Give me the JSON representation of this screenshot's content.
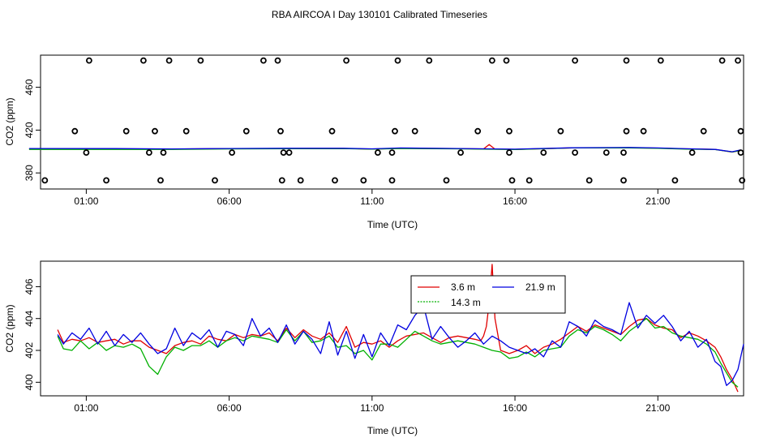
{
  "figure": {
    "title": "RBA AIRCOA I  Day 130101  Calibrated Timeseries"
  },
  "colors": {
    "axis": "#000000",
    "series_3_6m": "#e00000",
    "series_14_3m": "#00b000",
    "series_21_9m": "#0000e0",
    "points": "#000000"
  },
  "chart_data": [
    {
      "type": "line",
      "id": "top",
      "title": "",
      "xlabel": "Time (UTC)",
      "ylabel": "CO2 (ppm)",
      "xlim": [
        -0.6,
        24.0
      ],
      "ylim": [
        365,
        490
      ],
      "xticks": [
        1,
        6,
        11,
        16,
        21
      ],
      "xtick_labels": [
        "01:00",
        "06:00",
        "11:00",
        "16:00",
        "21:00"
      ],
      "yticks": [
        380,
        420,
        460
      ],
      "ytick_labels": [
        "380",
        "420",
        "460"
      ],
      "scatter": {
        "name": "calibration points",
        "x": [
          1.1,
          3.0,
          3.9,
          5.0,
          7.2,
          7.7,
          10.1,
          11.9,
          13.0,
          15.2,
          15.7,
          18.1,
          19.9,
          21.1,
          23.25,
          23.8,
          0.6,
          2.4,
          3.4,
          4.5,
          6.6,
          7.8,
          9.6,
          11.8,
          12.5,
          14.7,
          15.8,
          17.6,
          19.9,
          20.5,
          22.6,
          23.9,
          1.0,
          3.2,
          3.7,
          6.1,
          7.9,
          8.1,
          11.7,
          11.2,
          14.1,
          15.8,
          17.0,
          18.1,
          19.2,
          19.8,
          22.2,
          23.9,
          -0.45,
          1.7,
          3.6,
          5.5,
          7.85,
          8.5,
          9.7,
          10.7,
          11.7,
          13.6,
          15.9,
          16.5,
          18.6,
          19.8,
          21.6,
          23.95
        ],
        "y": [
          485,
          485,
          485,
          485,
          485,
          485,
          485,
          485,
          485,
          485,
          485,
          485,
          485,
          485,
          485,
          485,
          419,
          419,
          419,
          419,
          419,
          419,
          419,
          419,
          419,
          419,
          419,
          419,
          419,
          419,
          419,
          419,
          399,
          399,
          399,
          399,
          399,
          399,
          399,
          399,
          399,
          399,
          399,
          399,
          399,
          399,
          399,
          399,
          373,
          373,
          373,
          373,
          373,
          373,
          373,
          373,
          373,
          373,
          373,
          373,
          373,
          373,
          373,
          373
        ]
      },
      "series": [
        {
          "name": "3.6 m",
          "x": [
            -1,
            2,
            4,
            6,
            8,
            10,
            11,
            12,
            14,
            14.9,
            15.1,
            15.3,
            16,
            18,
            20,
            21,
            22,
            23,
            23.6,
            23.9
          ],
          "values": [
            402.5,
            402.5,
            402.3,
            402.7,
            402.8,
            402.9,
            402.3,
            403.0,
            402.7,
            402.4,
            406.5,
            402.2,
            402.0,
            403.4,
            403.5,
            403.2,
            402.5,
            402.0,
            399.5,
            401.0
          ]
        },
        {
          "name": "14.3 m",
          "x": [
            -1,
            2,
            4,
            6,
            8,
            10,
            11,
            12,
            14,
            16,
            18,
            20,
            21,
            22,
            23,
            23.6,
            23.9
          ],
          "values": [
            402.0,
            402.0,
            402.0,
            402.4,
            402.6,
            402.7,
            402.2,
            402.8,
            402.5,
            401.8,
            403.3,
            403.4,
            403.0,
            402.3,
            401.8,
            399.6,
            401.0
          ]
        },
        {
          "name": "21.9 m",
          "x": [
            -1,
            2,
            4,
            6,
            8,
            10,
            11,
            12,
            14,
            16,
            18,
            20,
            21,
            22,
            23,
            23.6,
            23.9
          ],
          "values": [
            402.8,
            402.7,
            402.4,
            402.8,
            403.0,
            403.0,
            402.5,
            403.3,
            402.8,
            402.2,
            403.5,
            403.8,
            403.3,
            402.6,
            402.0,
            399.8,
            401.5
          ]
        }
      ]
    },
    {
      "type": "line",
      "id": "bottom",
      "title": "",
      "xlabel": "Time (UTC)",
      "ylabel": "CO2 (ppm)",
      "xlim": [
        -0.6,
        24.0
      ],
      "ylim": [
        399.15,
        407.6
      ],
      "xticks": [
        1,
        6,
        11,
        16,
        21
      ],
      "xtick_labels": [
        "01:00",
        "06:00",
        "11:00",
        "16:00",
        "21:00"
      ],
      "yticks": [
        400,
        402,
        404,
        406
      ],
      "ytick_labels": [
        "400",
        "402",
        "404",
        "406"
      ],
      "legend": {
        "placement": "top-center",
        "entries": [
          "3.6 m",
          "14.3 m",
          "21.9 m"
        ]
      },
      "series": [
        {
          "name": "3.6 m",
          "x": [
            0.0,
            0.2,
            0.5,
            0.8,
            1.1,
            1.4,
            1.7,
            2.0,
            2.3,
            2.6,
            2.9,
            3.2,
            3.5,
            3.8,
            4.1,
            4.4,
            4.7,
            5.0,
            5.3,
            5.6,
            5.9,
            6.2,
            6.5,
            6.8,
            7.1,
            7.4,
            7.7,
            8.0,
            8.3,
            8.6,
            8.9,
            9.2,
            9.5,
            9.8,
            10.1,
            10.4,
            10.7,
            11.0,
            11.3,
            11.6,
            11.9,
            12.2,
            12.5,
            12.8,
            13.1,
            13.4,
            13.7,
            14.0,
            14.3,
            14.6,
            14.8,
            14.9,
            15.0,
            15.1,
            15.2,
            15.3,
            15.5,
            15.8,
            16.1,
            16.4,
            16.7,
            17.0,
            17.3,
            17.6,
            17.9,
            18.2,
            18.5,
            18.8,
            19.1,
            19.4,
            19.7,
            20.0,
            20.3,
            20.6,
            20.9,
            21.2,
            21.5,
            21.8,
            22.1,
            22.4,
            22.7,
            23.0,
            23.2,
            23.4,
            23.6,
            23.8
          ],
          "values": [
            403.3,
            402.5,
            402.7,
            402.6,
            402.8,
            402.5,
            402.6,
            402.7,
            402.4,
            402.6,
            402.6,
            402.2,
            402.0,
            401.8,
            402.3,
            402.5,
            402.6,
            402.4,
            402.9,
            402.7,
            402.6,
            403.0,
            402.8,
            403.0,
            402.9,
            403.1,
            402.6,
            403.4,
            402.8,
            403.3,
            402.9,
            402.7,
            403.1,
            402.5,
            403.5,
            402.2,
            402.5,
            402.4,
            402.6,
            402.2,
            402.6,
            402.9,
            403.0,
            403.1,
            402.8,
            402.5,
            402.8,
            402.9,
            402.8,
            402.7,
            402.6,
            402.9,
            403.5,
            405.0,
            407.4,
            404.0,
            402.0,
            401.8,
            402.0,
            402.3,
            401.8,
            402.2,
            402.4,
            402.7,
            403.1,
            403.5,
            403.2,
            403.6,
            403.4,
            403.2,
            403.0,
            403.5,
            403.9,
            404.0,
            403.6,
            403.4,
            403.3,
            402.8,
            403.1,
            402.9,
            402.6,
            402.2,
            401.6,
            400.8,
            400.2,
            399.4
          ]
        },
        {
          "name": "14.3 m",
          "x": [
            0.0,
            0.2,
            0.5,
            0.8,
            1.1,
            1.4,
            1.7,
            2.0,
            2.3,
            2.6,
            2.9,
            3.2,
            3.5,
            3.8,
            4.1,
            4.4,
            4.7,
            5.0,
            5.3,
            5.6,
            5.9,
            6.2,
            6.5,
            6.8,
            7.1,
            7.4,
            7.7,
            8.0,
            8.3,
            8.6,
            8.9,
            9.2,
            9.5,
            9.8,
            10.1,
            10.4,
            10.7,
            11.0,
            11.3,
            11.6,
            11.9,
            12.2,
            12.5,
            12.8,
            13.1,
            13.4,
            13.7,
            14.0,
            14.3,
            14.6,
            14.9,
            15.2,
            15.5,
            15.8,
            16.1,
            16.4,
            16.7,
            17.0,
            17.3,
            17.6,
            17.9,
            18.2,
            18.5,
            18.8,
            19.1,
            19.4,
            19.7,
            20.0,
            20.3,
            20.6,
            20.9,
            21.2,
            21.5,
            21.8,
            22.1,
            22.4,
            22.7,
            23.0,
            23.2,
            23.4,
            23.6,
            23.8
          ],
          "values": [
            402.9,
            402.1,
            402.0,
            402.6,
            402.1,
            402.5,
            402.0,
            402.3,
            402.2,
            402.4,
            402.1,
            401.0,
            400.5,
            401.6,
            402.2,
            402.0,
            402.3,
            402.3,
            402.6,
            402.2,
            402.6,
            402.8,
            402.6,
            402.9,
            402.8,
            402.7,
            402.5,
            403.3,
            402.6,
            403.2,
            402.5,
            402.6,
            402.9,
            402.2,
            402.3,
            401.8,
            402.0,
            401.4,
            402.4,
            402.4,
            402.2,
            402.7,
            403.2,
            402.9,
            402.6,
            402.4,
            402.5,
            402.6,
            402.5,
            402.4,
            402.2,
            402.0,
            401.9,
            401.5,
            401.6,
            401.9,
            401.6,
            402.0,
            402.1,
            402.2,
            402.9,
            403.3,
            403.1,
            403.5,
            403.3,
            403.0,
            402.6,
            403.2,
            403.6,
            404.0,
            403.4,
            403.5,
            403.1,
            402.9,
            402.8,
            402.7,
            402.4,
            401.9,
            401.2,
            400.6,
            400.0,
            399.7
          ]
        },
        {
          "name": "21.9 m",
          "x": [
            0.0,
            0.2,
            0.5,
            0.8,
            1.1,
            1.4,
            1.7,
            2.0,
            2.3,
            2.6,
            2.9,
            3.2,
            3.5,
            3.8,
            4.1,
            4.4,
            4.7,
            5.0,
            5.3,
            5.6,
            5.9,
            6.2,
            6.5,
            6.8,
            7.1,
            7.4,
            7.7,
            8.0,
            8.3,
            8.6,
            8.9,
            9.2,
            9.5,
            9.8,
            10.1,
            10.4,
            10.7,
            11.0,
            11.3,
            11.6,
            11.9,
            12.2,
            12.5,
            12.8,
            13.1,
            13.4,
            13.7,
            14.0,
            14.3,
            14.6,
            14.9,
            15.2,
            15.5,
            15.8,
            16.1,
            16.4,
            16.7,
            17.0,
            17.3,
            17.6,
            17.9,
            18.2,
            18.5,
            18.8,
            19.1,
            19.4,
            19.7,
            20.0,
            20.3,
            20.6,
            20.9,
            21.2,
            21.5,
            21.8,
            22.1,
            22.4,
            22.7,
            23.0,
            23.2,
            23.4,
            23.6,
            23.8,
            24.0
          ],
          "values": [
            403.0,
            402.4,
            403.1,
            402.7,
            403.4,
            402.4,
            403.2,
            402.3,
            403.0,
            402.5,
            403.1,
            402.4,
            401.8,
            402.1,
            403.4,
            402.3,
            403.1,
            402.7,
            403.3,
            402.2,
            403.2,
            403.0,
            402.3,
            404.0,
            402.9,
            403.4,
            402.5,
            403.6,
            402.4,
            403.2,
            402.7,
            401.8,
            403.8,
            401.7,
            403.2,
            401.5,
            403.0,
            401.6,
            403.1,
            402.3,
            403.6,
            403.3,
            404.2,
            404.8,
            402.7,
            403.5,
            402.8,
            402.2,
            402.6,
            403.1,
            402.4,
            402.9,
            402.6,
            402.2,
            402.0,
            401.8,
            402.1,
            401.6,
            402.6,
            402.2,
            403.8,
            403.5,
            402.9,
            403.9,
            403.5,
            403.3,
            403.0,
            405.0,
            403.4,
            404.2,
            403.7,
            404.2,
            403.5,
            402.6,
            403.2,
            402.2,
            402.7,
            401.3,
            401.0,
            399.8,
            400.1,
            400.8,
            402.4
          ]
        }
      ]
    }
  ]
}
